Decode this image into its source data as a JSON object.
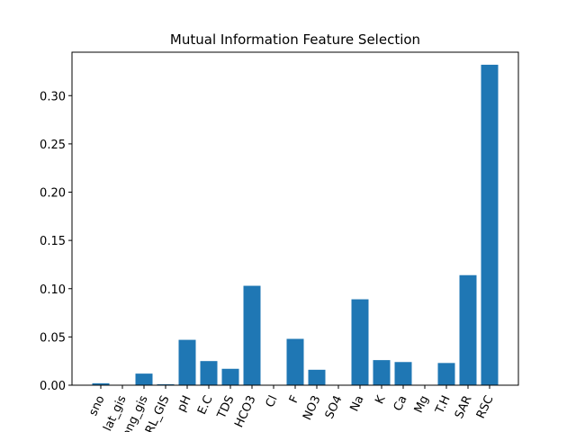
{
  "chart_data": {
    "type": "bar",
    "title": "Mutual Information Feature Selection",
    "xlabel": "",
    "ylabel": "",
    "categories": [
      "sno",
      "lat_gis",
      "long_gis",
      "RL_GIS",
      "pH",
      "E.C",
      "TDS",
      "HCO3",
      "Cl",
      "F",
      "NO3",
      "SO4",
      "Na",
      "K",
      "Ca",
      "Mg",
      "T.H",
      "SAR",
      "RSC"
    ],
    "values": [
      0.002,
      0.0,
      0.012,
      0.001,
      0.047,
      0.025,
      0.017,
      0.103,
      0.0,
      0.048,
      0.016,
      0.0,
      0.089,
      0.026,
      0.024,
      0.0,
      0.023,
      0.114,
      0.332
    ],
    "ylim": [
      0,
      0.345
    ],
    "yticks": [
      "0.00",
      "0.05",
      "0.10",
      "0.15",
      "0.20",
      "0.25",
      "0.30"
    ],
    "bar_color": "#1f77b4",
    "grid": false,
    "legend": "none"
  }
}
